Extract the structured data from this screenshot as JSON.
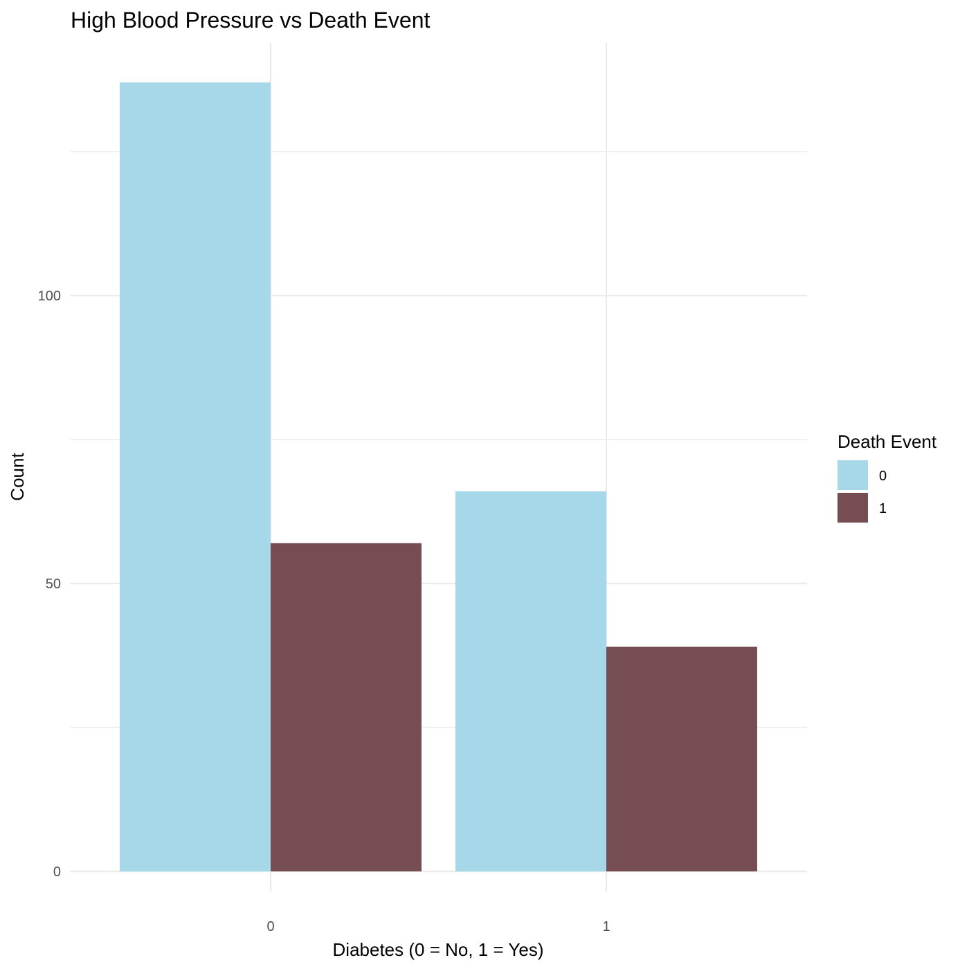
{
  "chart_data": {
    "type": "bar",
    "title": "High Blood Pressure vs Death Event",
    "xlabel": "Diabetes (0 = No, 1 = Yes)",
    "ylabel": "Count",
    "categories": [
      "0",
      "1"
    ],
    "series": [
      {
        "name": "0",
        "values": [
          137,
          66
        ],
        "color": "#a6d8ea"
      },
      {
        "name": "1",
        "values": [
          57,
          39
        ],
        "color": "#774d54"
      }
    ],
    "ylim": [
      0,
      137
    ],
    "y_ticks": [
      0,
      50,
      100
    ],
    "y_minor_ticks": [
      25,
      75,
      125
    ],
    "grid": true,
    "legend": {
      "title": "Death Event",
      "placement": "right"
    }
  }
}
